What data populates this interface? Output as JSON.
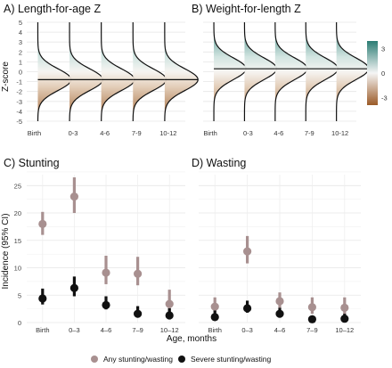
{
  "chart_data": [
    {
      "panel": "A",
      "type": "area",
      "title": "A) Length-for-age Z",
      "ylabel": "Z-score",
      "ylim": [
        -5,
        5
      ],
      "y_ticks": [
        "5",
        "4",
        "3",
        "2",
        "1",
        "0",
        "-1",
        "-2",
        "-3",
        "-4",
        "-5"
      ],
      "categories": [
        "Birth",
        "0-3",
        "4-6",
        "7-9",
        "10-12"
      ],
      "distribution_means": [
        -0.8,
        -0.8,
        -0.8,
        -0.8,
        -0.8
      ],
      "distribution_sd": 1.1
    },
    {
      "panel": "B",
      "type": "area",
      "title": "B) Weight-for-length Z",
      "ylim": [
        -5,
        5
      ],
      "categories": [
        "Birth",
        "0-3",
        "4-6",
        "7-9",
        "10-12"
      ],
      "distribution_means": [
        0.3,
        0.3,
        0.3,
        0.3,
        0.3
      ],
      "distribution_sd": 1.1,
      "colorbar": {
        "ticks": [
          "3",
          "0",
          "-3"
        ],
        "high_color": "#2b7d74",
        "mid_color": "#f5f5f5",
        "low_color": "#9b5b28"
      }
    },
    {
      "panel": "C",
      "type": "scatter",
      "title": "C) Stunting",
      "ylabel": "Incidence (95% CI)",
      "xlabel": "Age, months",
      "ylim": [
        0,
        27
      ],
      "y_ticks": [
        "0",
        "5",
        "10",
        "15",
        "20",
        "25"
      ],
      "categories": [
        "Birth",
        "0–3",
        "4–6",
        "7–9",
        "10–12"
      ],
      "series": [
        {
          "name": "Any stunting/wasting",
          "color": "#a89090",
          "values": [
            18.0,
            23.0,
            9.1,
            8.9,
            3.4
          ],
          "ci_low": [
            16.0,
            20.0,
            7.0,
            6.8,
            2.0
          ],
          "ci_high": [
            20.2,
            26.5,
            12.2,
            12.0,
            6.0
          ]
        },
        {
          "name": "Severe stunting/wasting",
          "color": "#111111",
          "values": [
            4.4,
            6.3,
            3.2,
            1.6,
            1.3
          ],
          "ci_low": [
            3.3,
            4.8,
            2.4,
            0.9,
            0.7
          ],
          "ci_high": [
            6.2,
            8.4,
            4.8,
            3.0,
            2.6
          ]
        }
      ]
    },
    {
      "panel": "D",
      "type": "scatter",
      "title": "D) Wasting",
      "ylim": [
        0,
        27
      ],
      "categories": [
        "Birth",
        "0–3",
        "4–6",
        "7–9",
        "10–12"
      ],
      "series": [
        {
          "name": "Any stunting/wasting",
          "color": "#a89090",
          "values": [
            2.9,
            13.0,
            3.9,
            2.8,
            2.7
          ],
          "ci_low": [
            1.9,
            10.8,
            2.7,
            1.6,
            1.5
          ],
          "ci_high": [
            4.6,
            15.8,
            5.5,
            4.6,
            4.6
          ]
        },
        {
          "name": "Severe stunting/wasting",
          "color": "#111111",
          "values": [
            1.0,
            2.6,
            1.6,
            0.6,
            0.7
          ],
          "ci_low": [
            0.4,
            1.8,
            1.0,
            0.2,
            0.3
          ],
          "ci_high": [
            2.2,
            4.0,
            2.7,
            1.3,
            1.6
          ]
        }
      ]
    }
  ],
  "legend": {
    "items": [
      {
        "label": "Any stunting/wasting",
        "color": "#a89090"
      },
      {
        "label": "Severe stunting/wasting",
        "color": "#111111"
      }
    ]
  }
}
